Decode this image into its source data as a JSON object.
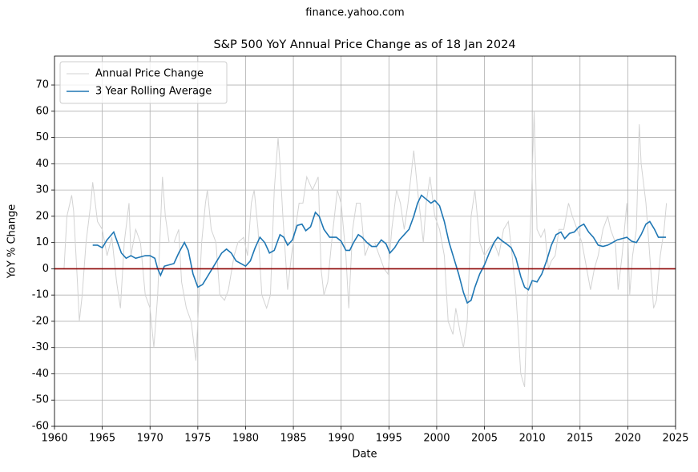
{
  "chart_data": {
    "type": "line",
    "suptitle": "finance.yahoo.com",
    "title": "S&P 500 YoY Annual Price Change as of 18 Jan 2024",
    "x_label": "Date",
    "y_label": "YoY % Change",
    "xlim": [
      1960,
      2025
    ],
    "xticks": [
      1960,
      1965,
      1970,
      1975,
      1980,
      1985,
      1990,
      1995,
      2000,
      2005,
      2010,
      2015,
      2020,
      2025
    ],
    "ylim": [
      -60,
      81
    ],
    "yticks": [
      -60,
      -50,
      -40,
      -30,
      -20,
      -10,
      0,
      10,
      20,
      30,
      40,
      50,
      60,
      70
    ],
    "grid": true,
    "legend": "upper left",
    "reference_line": {
      "value": 0,
      "color": "#8b0000"
    },
    "series": [
      {
        "name": "Annual Price Change",
        "color": "#d3d3d3",
        "x": [
          1961.0,
          1961.3,
          1961.8,
          1962.0,
          1962.4,
          1962.6,
          1962.9,
          1963.3,
          1963.8,
          1964.0,
          1964.5,
          1965.0,
          1965.5,
          1966.0,
          1966.5,
          1966.9,
          1967.3,
          1967.8,
          1968.0,
          1968.5,
          1969.0,
          1969.5,
          1970.0,
          1970.4,
          1970.8,
          1971.3,
          1971.6,
          1972.0,
          1972.5,
          1973.0,
          1973.3,
          1973.8,
          1974.3,
          1974.8,
          1975.0,
          1975.4,
          1975.8,
          1976.0,
          1976.4,
          1976.9,
          1977.3,
          1977.8,
          1978.2,
          1978.8,
          1979.2,
          1979.8,
          1980.2,
          1980.6,
          1980.9,
          1981.3,
          1981.7,
          1982.2,
          1982.6,
          1983.0,
          1983.4,
          1983.6,
          1983.9,
          1984.4,
          1984.8,
          1985.2,
          1985.6,
          1986.0,
          1986.4,
          1987.0,
          1987.6,
          1987.9,
          1988.2,
          1988.6,
          1989.0,
          1989.6,
          1990.0,
          1990.5,
          1990.8,
          1991.2,
          1991.6,
          1992.0,
          1992.5,
          1993.0,
          1993.5,
          1994.0,
          1994.5,
          1994.9,
          1995.3,
          1995.8,
          1996.2,
          1996.6,
          1997.0,
          1997.6,
          1998.0,
          1998.6,
          1998.9,
          1999.3,
          1999.8,
          2000.3,
          2000.8,
          2001.2,
          2001.7,
          2002.0,
          2002.5,
          2002.8,
          2003.2,
          2003.6,
          2004.0,
          2004.5,
          2005.0,
          2005.5,
          2006.0,
          2006.5,
          2007.0,
          2007.5,
          2007.9,
          2008.3,
          2008.8,
          2009.2,
          2009.5,
          2009.9,
          2010.2,
          2010.5,
          2010.9,
          2011.3,
          2011.7,
          2012.0,
          2012.4,
          2012.8,
          2013.3,
          2013.8,
          2014.2,
          2014.7,
          2015.2,
          2015.7,
          2016.1,
          2016.5,
          2016.9,
          2017.4,
          2017.9,
          2018.2,
          2018.7,
          2018.99,
          2019.4,
          2019.9,
          2020.2,
          2020.5,
          2020.9,
          2021.2,
          2021.4,
          2021.9,
          2022.3,
          2022.7,
          2023.0,
          2023.4,
          2023.8,
          2024.05
        ],
        "values": [
          0,
          20,
          28,
          22,
          -5,
          -20,
          -10,
          10,
          25,
          33,
          18,
          15,
          5,
          12,
          -5,
          -15,
          10,
          25,
          5,
          15,
          10,
          -10,
          -15,
          -30,
          -10,
          35,
          20,
          10,
          10,
          15,
          -5,
          -15,
          -20,
          -35,
          -20,
          10,
          25,
          30,
          15,
          10,
          -10,
          -12,
          -8,
          5,
          10,
          12,
          5,
          25,
          30,
          15,
          -10,
          -15,
          -10,
          30,
          50,
          40,
          20,
          -8,
          5,
          15,
          25,
          25,
          35,
          30,
          35,
          0,
          -10,
          -5,
          10,
          30,
          25,
          5,
          -15,
          15,
          25,
          25,
          5,
          10,
          10,
          5,
          0,
          -2,
          15,
          30,
          25,
          15,
          25,
          45,
          30,
          10,
          25,
          35,
          20,
          15,
          5,
          -20,
          -25,
          -15,
          -25,
          -30,
          -20,
          20,
          30,
          10,
          5,
          8,
          10,
          5,
          15,
          18,
          5,
          -10,
          -40,
          -45,
          -10,
          25,
          60,
          15,
          12,
          15,
          0,
          3,
          5,
          15,
          15,
          25,
          20,
          15,
          10,
          0,
          -8,
          0,
          5,
          15,
          20,
          15,
          10,
          -8,
          5,
          25,
          -10,
          5,
          15,
          55,
          40,
          25,
          5,
          -15,
          -12,
          5,
          15,
          25
        ]
      },
      {
        "name": "3 Year Rolling Average",
        "color": "#1f77b4",
        "x": [
          1964.0,
          1964.5,
          1965.0,
          1965.5,
          1966.2,
          1966.6,
          1967.0,
          1967.5,
          1968.0,
          1968.5,
          1969.0,
          1969.5,
          1970.0,
          1970.5,
          1970.8,
          1971.1,
          1971.5,
          1972.0,
          1972.5,
          1973.0,
          1973.6,
          1974.0,
          1974.5,
          1975.0,
          1975.5,
          1976.0,
          1976.5,
          1977.0,
          1977.5,
          1978.0,
          1978.5,
          1979.0,
          1979.5,
          1980.0,
          1980.5,
          1981.0,
          1981.5,
          1982.0,
          1982.5,
          1983.0,
          1983.6,
          1984.0,
          1984.4,
          1984.9,
          1985.4,
          1985.9,
          1986.3,
          1986.8,
          1987.3,
          1987.7,
          1988.2,
          1988.8,
          1989.5,
          1990.0,
          1990.5,
          1990.9,
          1991.3,
          1991.8,
          1992.2,
          1992.7,
          1993.2,
          1993.7,
          1994.2,
          1994.7,
          1995.1,
          1995.6,
          1996.1,
          1996.6,
          1997.1,
          1997.6,
          1998.0,
          1998.4,
          1998.9,
          1999.4,
          1999.8,
          2000.3,
          2000.8,
          2001.3,
          2001.8,
          2002.3,
          2002.8,
          2003.2,
          2003.6,
          2004.0,
          2004.5,
          2005.0,
          2005.5,
          2006.0,
          2006.4,
          2006.9,
          2007.3,
          2007.8,
          2008.3,
          2008.8,
          2009.2,
          2009.6,
          2010.0,
          2010.5,
          2011.0,
          2011.5,
          2012.0,
          2012.5,
          2013.0,
          2013.4,
          2013.9,
          2014.4,
          2014.9,
          2015.4,
          2015.9,
          2016.4,
          2016.9,
          2017.4,
          2017.9,
          2018.4,
          2018.9,
          2019.4,
          2019.9,
          2020.4,
          2020.9,
          2021.4,
          2021.9,
          2022.3,
          2022.8,
          2023.2,
          2023.7,
          2024.0
        ],
        "values": [
          9,
          9,
          8,
          11,
          14,
          10,
          6,
          4,
          5,
          4,
          4.5,
          5,
          5,
          4,
          0,
          -2.5,
          1,
          1.5,
          2,
          6,
          10,
          7,
          -2,
          -7,
          -6,
          -3,
          0,
          3,
          6,
          7.5,
          6,
          3,
          2,
          1,
          3,
          8,
          12,
          10,
          6,
          7,
          13,
          12,
          9,
          11,
          16.5,
          17,
          14.5,
          16,
          21.5,
          20,
          15,
          12,
          12,
          10.5,
          7,
          7,
          10,
          13,
          12,
          10,
          8.5,
          8.5,
          11,
          9.5,
          6,
          8,
          11,
          13,
          15,
          20,
          25,
          28,
          26.5,
          25,
          26,
          24,
          18,
          10,
          4,
          -2,
          -9,
          -13,
          -12,
          -7,
          -2,
          1.5,
          6,
          10,
          12,
          10.5,
          9.5,
          8,
          4,
          -3,
          -7,
          -8,
          -4.5,
          -5,
          -2,
          3,
          9,
          13,
          14,
          11.5,
          13.5,
          14,
          16,
          17,
          14,
          12,
          9,
          8.5,
          9,
          10,
          11,
          11.5,
          12,
          10.5,
          10,
          13,
          17,
          18,
          15,
          12,
          12,
          12
        ]
      }
    ]
  }
}
